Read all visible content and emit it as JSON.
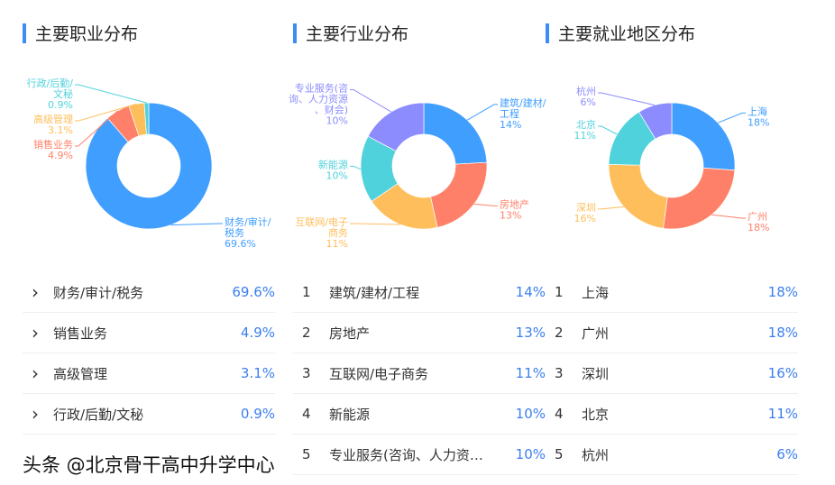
{
  "colors": [
    "#409eff",
    "#ff8068",
    "#ffbe5c",
    "#4fd2dc",
    "#8c8cff"
  ],
  "panels": [
    {
      "title": "主要职业分布",
      "ranked": false,
      "items": [
        {
          "label": "财务/审计/税务",
          "chart_label": "财务/审计/税务",
          "value": 69.6,
          "pct": "69.6%"
        },
        {
          "label": "销售业务",
          "chart_label": "销售业务",
          "value": 4.9,
          "pct": "4.9%"
        },
        {
          "label": "高级管理",
          "chart_label": "高级管理",
          "value": 3.1,
          "pct": "3.1%"
        },
        {
          "label": "行政/后勤/文秘",
          "chart_label": "行政/后勤/文秘",
          "value": 0.9,
          "pct": "0.9%"
        }
      ]
    },
    {
      "title": "主要行业分布",
      "ranked": true,
      "items": [
        {
          "label": "建筑/建材/工程",
          "value": 14,
          "pct": "14%"
        },
        {
          "label": "房地产",
          "value": 13,
          "pct": "13%"
        },
        {
          "label": "互联网/电子商务",
          "value": 11,
          "pct": "11%"
        },
        {
          "label": "新能源",
          "value": 10,
          "pct": "10%"
        },
        {
          "label": "专业服务(咨询、人力资源、财会)",
          "value": 10,
          "pct": "10%"
        }
      ]
    },
    {
      "title": "主要就业地区分布",
      "ranked": true,
      "items": [
        {
          "label": "上海",
          "value": 18,
          "pct": "18%"
        },
        {
          "label": "广州",
          "value": 18,
          "pct": "18%"
        },
        {
          "label": "深圳",
          "value": 16,
          "pct": "16%"
        },
        {
          "label": "北京",
          "value": 11,
          "pct": "11%"
        },
        {
          "label": "杭州",
          "value": 6,
          "pct": "6%"
        }
      ]
    }
  ],
  "watermark": "头条 @北京骨干高中升学中心"
}
